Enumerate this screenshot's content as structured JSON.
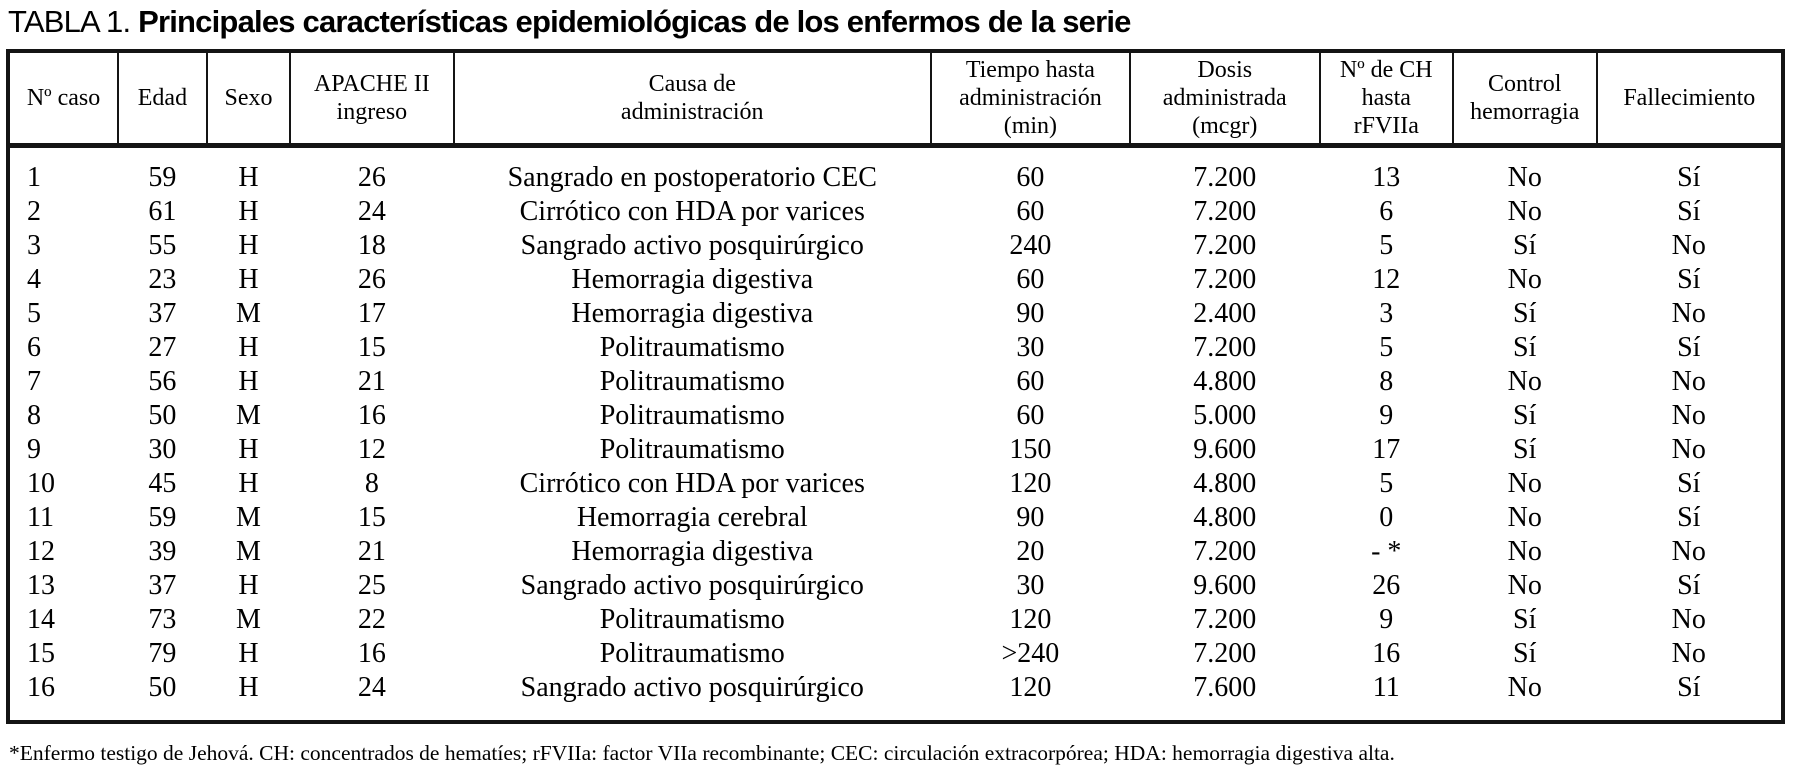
{
  "title": {
    "prefix": "TABLA 1.",
    "bold": "Principales características epidemiológicas de los enfermos de la serie"
  },
  "table": {
    "columns": [
      "Nº caso",
      "Edad",
      "Sexo",
      "APACHE II\ningreso",
      "Causa de\nadministración",
      "Tiempo hasta\nadministración\n(min)",
      "Dosis\nadministrada\n(mcgr)",
      "Nº de CH\nhasta\nrFVIIa",
      "Control\nhemorragia",
      "Fallecimiento"
    ],
    "rows": [
      [
        "1",
        "59",
        "H",
        "26",
        "Sangrado en postoperatorio CEC",
        "60",
        "7.200",
        "13",
        "No",
        "Sí"
      ],
      [
        "2",
        "61",
        "H",
        "24",
        "Cirrótico con HDA por varices",
        "60",
        "7.200",
        "6",
        "No",
        "Sí"
      ],
      [
        "3",
        "55",
        "H",
        "18",
        "Sangrado activo posquirúrgico",
        "240",
        "7.200",
        "5",
        "Sí",
        "No"
      ],
      [
        "4",
        "23",
        "H",
        "26",
        "Hemorragia digestiva",
        "60",
        "7.200",
        "12",
        "No",
        "Sí"
      ],
      [
        "5",
        "37",
        "M",
        "17",
        "Hemorragia digestiva",
        "90",
        "2.400",
        "3",
        "Sí",
        "No"
      ],
      [
        "6",
        "27",
        "H",
        "15",
        "Politraumatismo",
        "30",
        "7.200",
        "5",
        "Sí",
        "Sí"
      ],
      [
        "7",
        "56",
        "H",
        "21",
        "Politraumatismo",
        "60",
        "4.800",
        "8",
        "No",
        "No"
      ],
      [
        "8",
        "50",
        "M",
        "16",
        "Politraumatismo",
        "60",
        "5.000",
        "9",
        "Sí",
        "No"
      ],
      [
        "9",
        "30",
        "H",
        "12",
        "Politraumatismo",
        "150",
        "9.600",
        "17",
        "Sí",
        "No"
      ],
      [
        "10",
        "45",
        "H",
        "8",
        "Cirrótico con HDA por varices",
        "120",
        "4.800",
        "5",
        "No",
        "Sí"
      ],
      [
        "11",
        "59",
        "M",
        "15",
        "Hemorragia cerebral",
        "90",
        "4.800",
        "0",
        "No",
        "Sí"
      ],
      [
        "12",
        "39",
        "M",
        "21",
        "Hemorragia digestiva",
        "20",
        "7.200",
        "- *",
        "No",
        "No"
      ],
      [
        "13",
        "37",
        "H",
        "25",
        "Sangrado activo posquirúrgico",
        "30",
        "9.600",
        "26",
        "No",
        "Sí"
      ],
      [
        "14",
        "73",
        "M",
        "22",
        "Politraumatismo",
        "120",
        "7.200",
        "9",
        "Sí",
        "No"
      ],
      [
        "15",
        "79",
        "H",
        "16",
        "Politraumatismo",
        ">240",
        "7.200",
        "16",
        "Sí",
        "No"
      ],
      [
        "16",
        "50",
        "H",
        "24",
        "Sangrado activo posquirúrgico",
        "120",
        "7.600",
        "11",
        "No",
        "Sí"
      ]
    ]
  },
  "footnote": "*Enfermo testigo de Jehová. CH: concentrados de hematíes; rFVIIa: factor VIIa recombinante; CEC: circulación extracorpórea; HDA: hemorragia digestiva alta."
}
